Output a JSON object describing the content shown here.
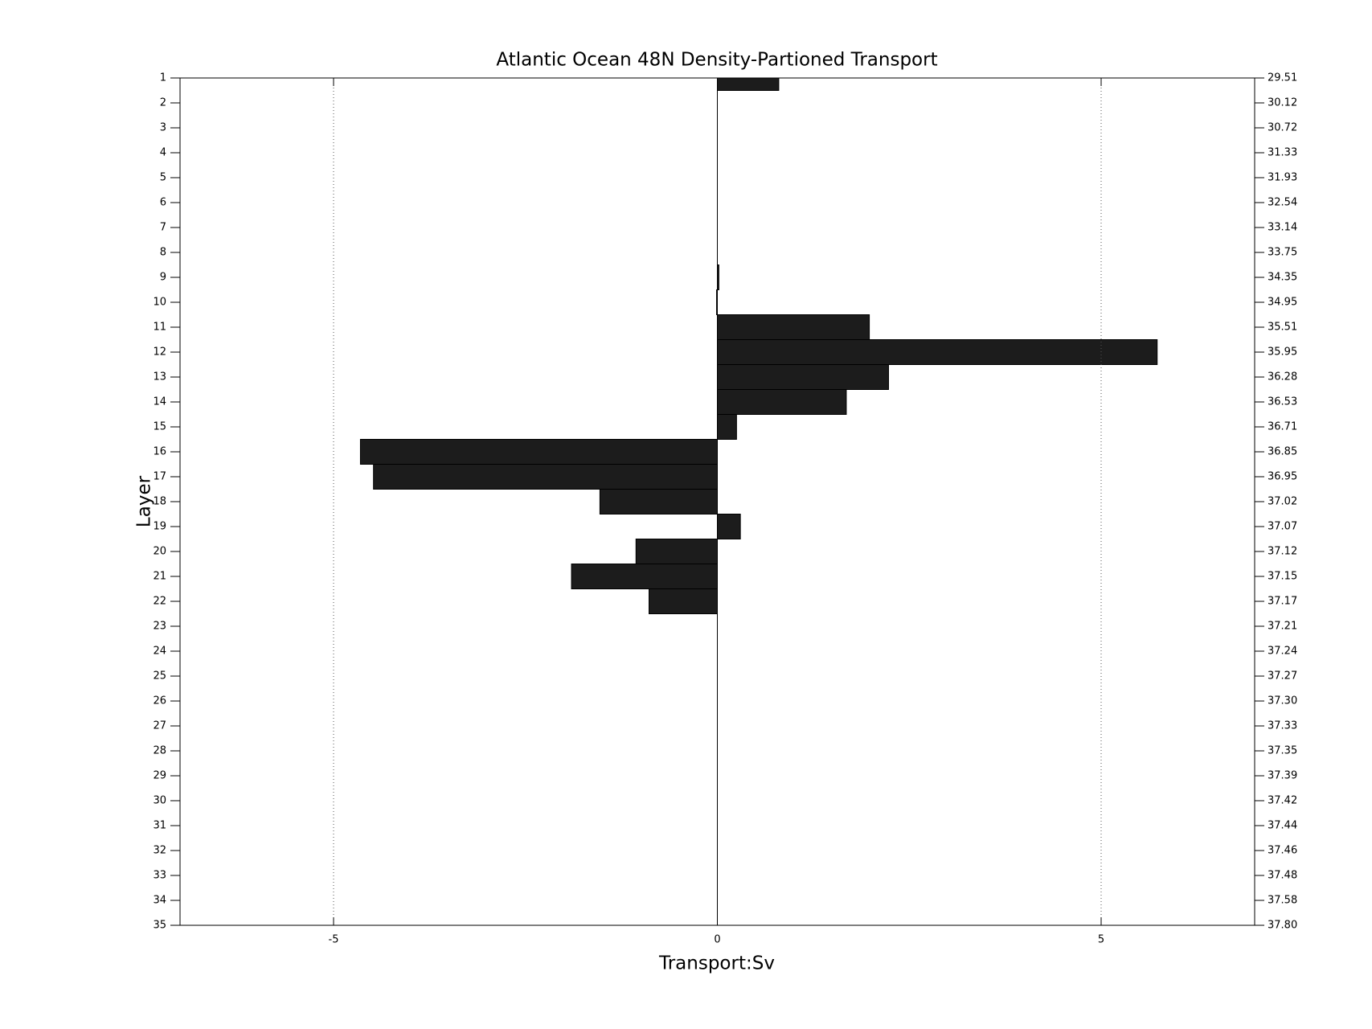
{
  "chart_data": {
    "type": "barh",
    "title": "Atlantic Ocean 48N Density-Partioned Transport",
    "xlabel": "Transport:Sv",
    "ylabel": "Layer",
    "y": [
      1,
      2,
      3,
      4,
      5,
      6,
      7,
      8,
      9,
      10,
      11,
      12,
      13,
      14,
      15,
      16,
      17,
      18,
      19,
      20,
      21,
      22,
      23,
      24,
      25,
      26,
      27,
      28,
      29,
      30,
      31,
      32,
      33,
      34,
      35
    ],
    "values": [
      0.8,
      0,
      0,
      0,
      0,
      0,
      0,
      0,
      0.02,
      -0.01,
      1.98,
      5.73,
      2.23,
      1.68,
      0.25,
      -4.65,
      -4.48,
      -1.53,
      0.3,
      -1.06,
      -1.9,
      -0.89,
      0,
      0,
      0,
      0,
      0,
      0,
      0,
      0,
      0,
      0,
      0,
      0,
      0
    ],
    "color": "#1c1c1c",
    "xlim": [
      -7,
      7
    ],
    "xticks": [
      -5,
      0,
      5
    ],
    "ylim": [
      1,
      35
    ],
    "yticks": [
      1,
      2,
      3,
      4,
      5,
      6,
      7,
      8,
      9,
      10,
      11,
      12,
      13,
      14,
      15,
      16,
      17,
      18,
      19,
      20,
      21,
      22,
      23,
      24,
      25,
      26,
      27,
      28,
      29,
      30,
      31,
      32,
      33,
      34,
      35
    ],
    "y2_labels": [
      "29.51",
      "30.12",
      "30.72",
      "31.33",
      "31.93",
      "32.54",
      "33.14",
      "33.75",
      "34.35",
      "34.95",
      "35.51",
      "35.95",
      "36.28",
      "36.53",
      "36.71",
      "36.85",
      "36.95",
      "37.02",
      "37.07",
      "37.12",
      "37.15",
      "37.17",
      "37.21",
      "37.24",
      "37.27",
      "37.30",
      "37.33",
      "37.35",
      "37.39",
      "37.42",
      "37.44",
      "37.46",
      "37.48",
      "37.58",
      "37.80"
    ],
    "grid": true
  }
}
